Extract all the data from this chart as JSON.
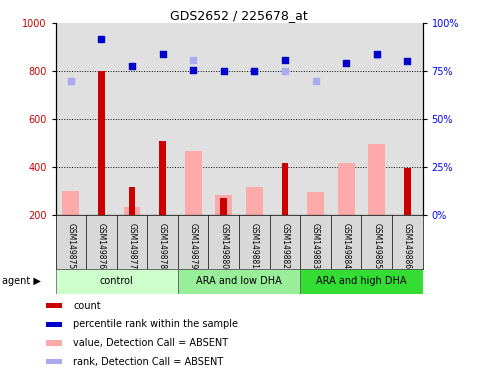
{
  "title": "GDS2652 / 225678_at",
  "samples": [
    "GSM149875",
    "GSM149876",
    "GSM149877",
    "GSM149878",
    "GSM149879",
    "GSM149880",
    "GSM149881",
    "GSM149882",
    "GSM149883",
    "GSM149884",
    "GSM149885",
    "GSM149886"
  ],
  "group_colors": [
    "#ccffcc",
    "#99ee99",
    "#33dd33"
  ],
  "group_labels": [
    "control",
    "ARA and low DHA",
    "ARA and high DHA"
  ],
  "group_ranges": [
    [
      0,
      4
    ],
    [
      4,
      8
    ],
    [
      8,
      12
    ]
  ],
  "count_values": [
    null,
    800,
    315,
    510,
    null,
    270,
    null,
    415,
    null,
    null,
    null,
    395
  ],
  "count_color": "#cc0000",
  "value_absent": [
    300,
    null,
    235,
    null,
    465,
    285,
    315,
    null,
    295,
    415,
    495,
    null
  ],
  "value_absent_color": "#ffaaaa",
  "rank_absent": [
    760,
    null,
    null,
    null,
    845,
    null,
    800,
    800,
    760,
    null,
    865,
    null
  ],
  "rank_absent_color": "#aaaaee",
  "percentile_rank": [
    null,
    935,
    820,
    870,
    805,
    800,
    800,
    845,
    null,
    835,
    870,
    840
  ],
  "percentile_rank_color": "#0000cc",
  "ylim_left": [
    200,
    1000
  ],
  "ylim_right": [
    0,
    100
  ],
  "yticks_left": [
    200,
    400,
    600,
    800,
    1000
  ],
  "yticks_right": [
    0,
    25,
    50,
    75,
    100
  ],
  "grid_values": [
    400,
    600,
    800
  ],
  "fig_width": 4.83,
  "fig_height": 3.84,
  "dpi": 100
}
